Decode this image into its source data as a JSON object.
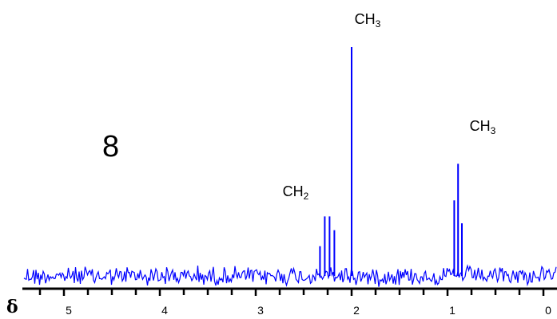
{
  "panel_label": "8",
  "chart_data": {
    "type": "line",
    "title": "",
    "xlabel": "δ",
    "ylabel": "",
    "x_reversed": true,
    "xlim": [
      5.33,
      0.0
    ],
    "ylim": [
      0,
      1.0
    ],
    "x_ticks": [
      5,
      4,
      3,
      2,
      1,
      0
    ],
    "x_tick_labels": [
      "5",
      "4",
      "3",
      "2",
      "1",
      "0"
    ],
    "minor_tick_step": 0.25,
    "grid": false,
    "line_color": "#0000ff",
    "baseline_noise_amplitude": 0.05,
    "peaks": [
      {
        "group": "CH2",
        "x": 2.33,
        "y": 0.13
      },
      {
        "group": "CH2",
        "x": 2.28,
        "y": 0.26
      },
      {
        "group": "CH2",
        "x": 2.23,
        "y": 0.26
      },
      {
        "group": "CH2",
        "x": 2.18,
        "y": 0.2
      },
      {
        "group": "CH3",
        "x": 2.0,
        "y": 1.0
      },
      {
        "group": "CH3",
        "x": 0.93,
        "y": 0.33
      },
      {
        "group": "CH3",
        "x": 0.89,
        "y": 0.49
      },
      {
        "group": "CH3",
        "x": 0.85,
        "y": 0.23
      }
    ],
    "annotations": [
      {
        "id": "ch3-singlet",
        "text": "CH",
        "subscript": "3",
        "x": 2.0
      },
      {
        "id": "ch3-triplet",
        "text": "CH",
        "subscript": "3",
        "x": 0.8
      },
      {
        "id": "ch2-quartet",
        "text": "CH",
        "subscript": "2",
        "x": 2.75
      }
    ]
  }
}
